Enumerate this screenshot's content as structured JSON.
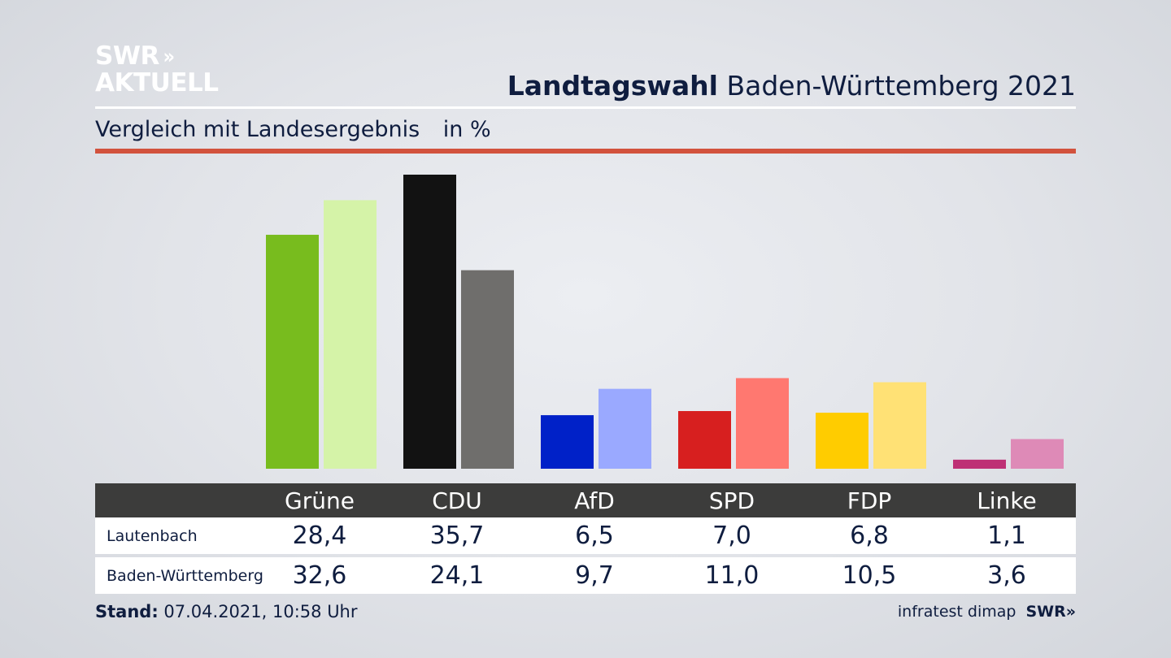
{
  "brand": {
    "logo_line1": "SWR",
    "logo_chevrons": "»",
    "logo_line2": "AKTUELL"
  },
  "header": {
    "title_bold": "Landtagswahl",
    "title_rest": "Baden-Württemberg 2021",
    "subtitle": "Vergleich mit Landesergebnis",
    "unit": "in %",
    "accent_color": "#d2523d"
  },
  "chart_data": {
    "type": "bar",
    "categories": [
      "Grüne",
      "CDU",
      "AfD",
      "SPD",
      "FDP",
      "Linke"
    ],
    "series": [
      {
        "name": "Lautenbach",
        "values": [
          28.4,
          35.7,
          6.5,
          7.0,
          6.8,
          1.1
        ],
        "colors": [
          "#78bc1e",
          "#121212",
          "#0021c8",
          "#d71f1f",
          "#ffcc00",
          "#be3075"
        ]
      },
      {
        "name": "Baden-Württemberg",
        "values": [
          32.6,
          24.1,
          9.7,
          11.0,
          10.5,
          3.6
        ],
        "colors": [
          "#d5f3a8",
          "#6f6e6c",
          "#9aa9ff",
          "#ff7870",
          "#ffe175",
          "#de8ab7"
        ]
      }
    ],
    "ylim": [
      0,
      35.7
    ],
    "grid": false,
    "legend": "table-below"
  },
  "table": {
    "headers": [
      "Grüne",
      "CDU",
      "AfD",
      "SPD",
      "FDP",
      "Linke"
    ],
    "rows": [
      {
        "label": "Lautenbach",
        "values": [
          "28,4",
          "35,7",
          "6,5",
          "7,0",
          "6,8",
          "1,1"
        ]
      },
      {
        "label": "Baden-Württemberg",
        "values": [
          "32,6",
          "24,1",
          "9,7",
          "11,0",
          "10,5",
          "3,6"
        ]
      }
    ]
  },
  "footer": {
    "stand_label": "Stand:",
    "stand_value": "07.04.2021, 10:58 Uhr",
    "source": "infratest dimap",
    "source_logo": "SWR»"
  }
}
